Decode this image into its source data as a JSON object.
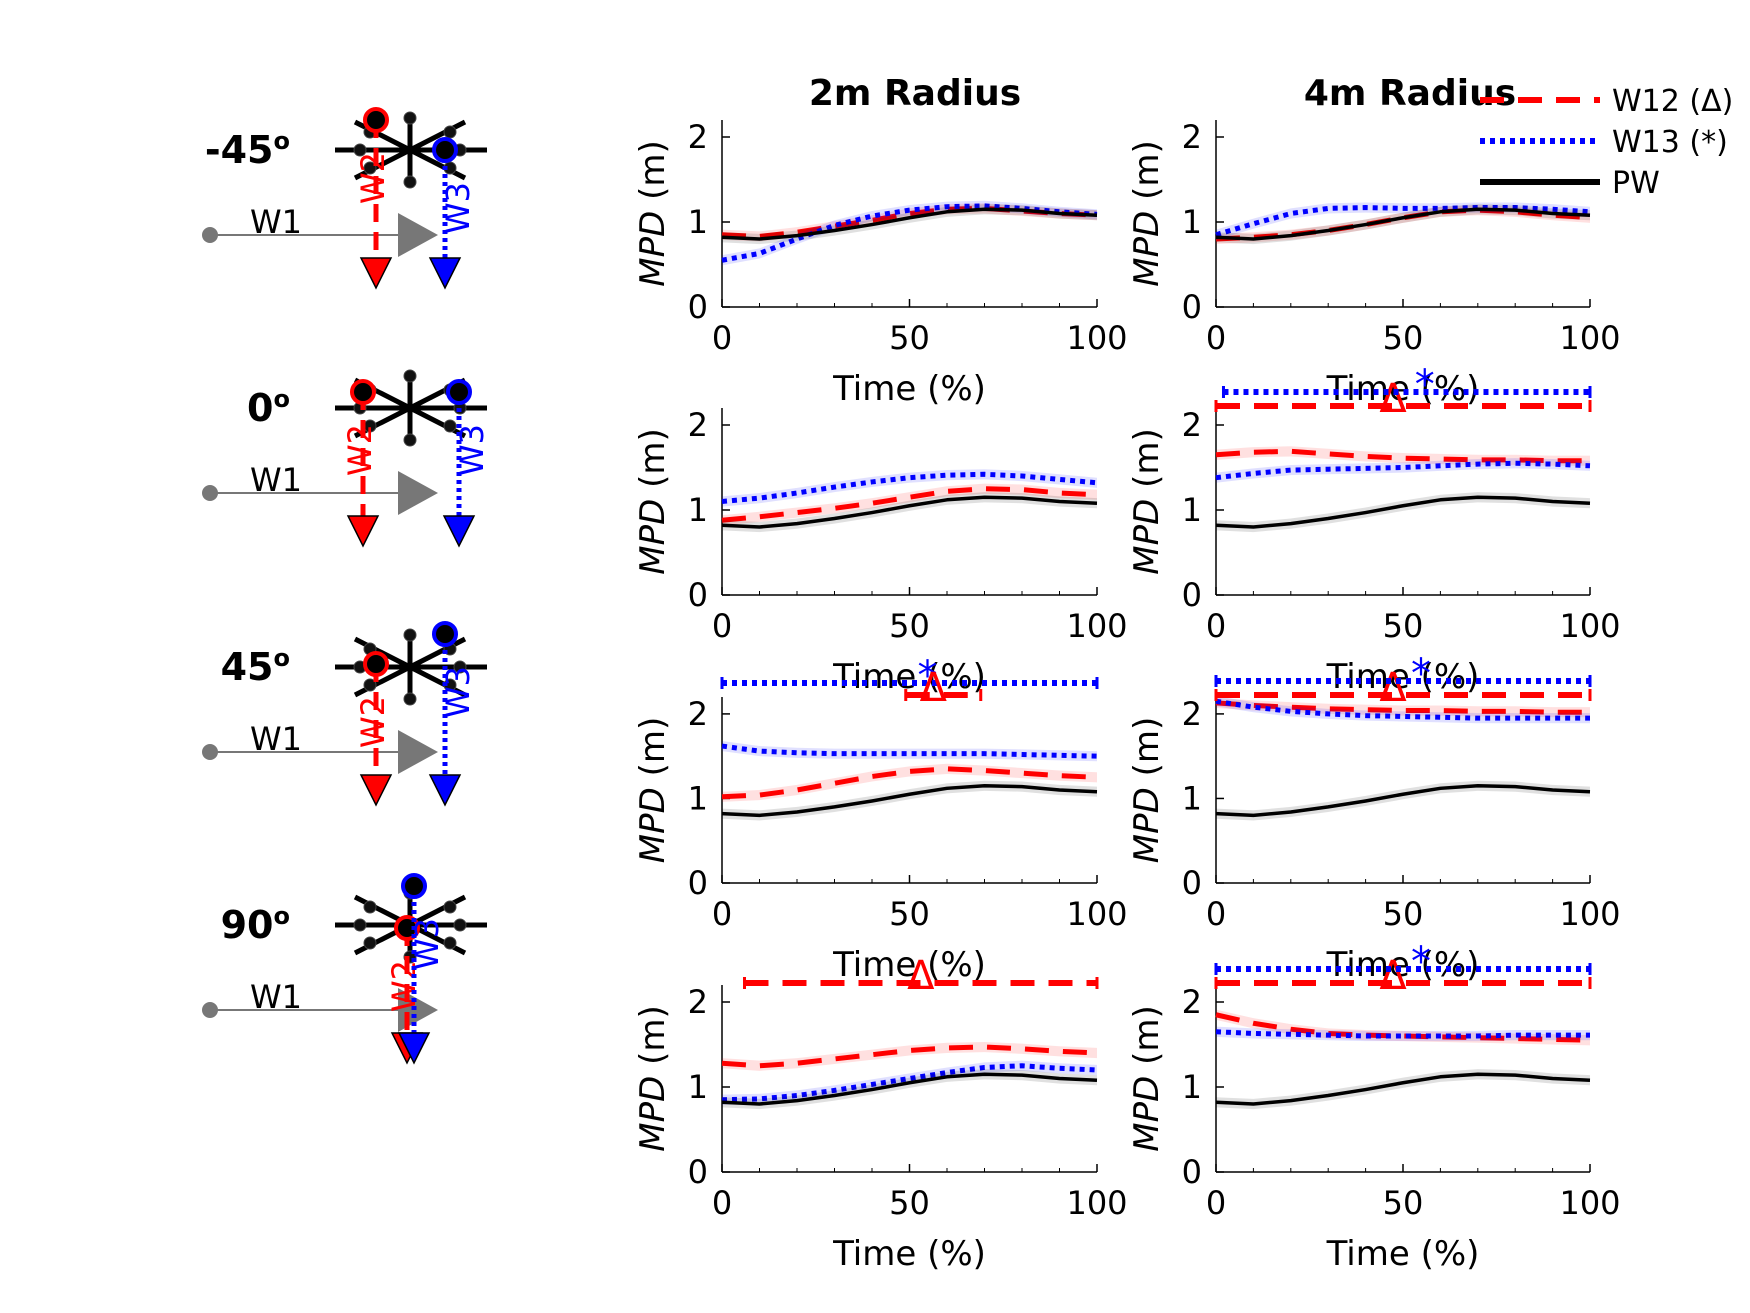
{
  "figure": {
    "column_titles": [
      "2m Radius",
      "4m Radius"
    ],
    "row_labels": [
      "-45",
      "0",
      "45",
      "90"
    ],
    "degree_symbol": "o",
    "walker_labels": {
      "w1": "W1",
      "w2": "W2",
      "w3": "W3"
    }
  },
  "legend": {
    "items": [
      {
        "label": "W12 (Δ)",
        "color": "#ff0000",
        "style": "dashed"
      },
      {
        "label": "W13 (*)",
        "color": "#0000ff",
        "style": "dotted"
      },
      {
        "label": "PW",
        "color": "#000000",
        "style": "solid"
      }
    ]
  },
  "colors": {
    "w12": "#ff0000",
    "w13": "#0000ff",
    "pw": "#000000",
    "w1": "#777777"
  },
  "chart_data": [
    {
      "type": "line",
      "panel": "-45 / 2m",
      "xlabel": "Time (%)",
      "ylabel": "MPD (m)",
      "xlim": [
        0,
        100
      ],
      "ylim": [
        0,
        2.2
      ],
      "xticks": [
        "0",
        "50",
        "100"
      ],
      "yticks": [
        "0",
        "1",
        "2"
      ],
      "x": [
        0,
        10,
        20,
        30,
        40,
        50,
        60,
        70,
        80,
        90,
        100
      ],
      "series": [
        {
          "name": "W12 (Δ)",
          "values": [
            0.85,
            0.83,
            0.88,
            0.95,
            1.02,
            1.1,
            1.15,
            1.16,
            1.13,
            1.1,
            1.08
          ]
        },
        {
          "name": "W13 (*)",
          "values": [
            0.55,
            0.63,
            0.8,
            0.96,
            1.07,
            1.14,
            1.18,
            1.19,
            1.16,
            1.12,
            1.09
          ]
        },
        {
          "name": "PW",
          "values": [
            0.82,
            0.8,
            0.84,
            0.9,
            0.97,
            1.05,
            1.12,
            1.15,
            1.14,
            1.1,
            1.08
          ]
        }
      ],
      "significance": []
    },
    {
      "type": "line",
      "panel": "-45 / 4m",
      "xlabel": "Time (%)",
      "ylabel": "MPD (m)",
      "xlim": [
        0,
        100
      ],
      "ylim": [
        0,
        2.2
      ],
      "xticks": [
        "0",
        "50",
        "100"
      ],
      "yticks": [
        "0",
        "1",
        "2"
      ],
      "x": [
        0,
        10,
        20,
        30,
        40,
        50,
        60,
        70,
        80,
        90,
        100
      ],
      "series": [
        {
          "name": "W12 (Δ)",
          "values": [
            0.8,
            0.82,
            0.85,
            0.9,
            0.97,
            1.05,
            1.12,
            1.14,
            1.12,
            1.08,
            1.05
          ]
        },
        {
          "name": "W13 (*)",
          "values": [
            0.85,
            0.98,
            1.1,
            1.16,
            1.17,
            1.16,
            1.16,
            1.17,
            1.17,
            1.15,
            1.12
          ]
        },
        {
          "name": "PW",
          "values": [
            0.82,
            0.8,
            0.84,
            0.9,
            0.97,
            1.05,
            1.12,
            1.15,
            1.14,
            1.1,
            1.08
          ]
        }
      ],
      "significance": []
    },
    {
      "type": "line",
      "panel": "0 / 2m",
      "xlabel": "Time (%)",
      "ylabel": "MPD (m)",
      "xlim": [
        0,
        100
      ],
      "ylim": [
        0,
        2.2
      ],
      "xticks": [
        "0",
        "50",
        "100"
      ],
      "yticks": [
        "0",
        "1",
        "2"
      ],
      "x": [
        0,
        10,
        20,
        30,
        40,
        50,
        60,
        70,
        80,
        90,
        100
      ],
      "series": [
        {
          "name": "W12 (Δ)",
          "values": [
            0.88,
            0.92,
            0.97,
            1.02,
            1.08,
            1.15,
            1.22,
            1.25,
            1.24,
            1.2,
            1.18
          ]
        },
        {
          "name": "W13 (*)",
          "values": [
            1.1,
            1.14,
            1.2,
            1.27,
            1.33,
            1.38,
            1.41,
            1.42,
            1.4,
            1.36,
            1.32
          ]
        },
        {
          "name": "PW",
          "values": [
            0.82,
            0.8,
            0.84,
            0.9,
            0.97,
            1.05,
            1.12,
            1.15,
            1.14,
            1.1,
            1.08
          ]
        }
      ],
      "significance": []
    },
    {
      "type": "line",
      "panel": "0 / 4m",
      "xlabel": "Time (%)",
      "ylabel": "MPD (m)",
      "xlim": [
        0,
        100
      ],
      "ylim": [
        0,
        2.2
      ],
      "xticks": [
        "0",
        "50",
        "100"
      ],
      "yticks": [
        "0",
        "1",
        "2"
      ],
      "x": [
        0,
        10,
        20,
        30,
        40,
        50,
        60,
        70,
        80,
        90,
        100
      ],
      "series": [
        {
          "name": "W12 (Δ)",
          "values": [
            1.65,
            1.68,
            1.69,
            1.66,
            1.63,
            1.61,
            1.6,
            1.59,
            1.59,
            1.58,
            1.58
          ]
        },
        {
          "name": "W13 (*)",
          "values": [
            1.38,
            1.43,
            1.47,
            1.48,
            1.49,
            1.5,
            1.52,
            1.54,
            1.55,
            1.54,
            1.52
          ]
        },
        {
          "name": "PW",
          "values": [
            0.82,
            0.8,
            0.84,
            0.9,
            0.97,
            1.05,
            1.12,
            1.15,
            1.14,
            1.1,
            1.08
          ]
        }
      ],
      "significance": [
        {
          "series": "W12 (Δ)",
          "symbol": "Δ",
          "start": 0,
          "end": 100
        },
        {
          "series": "W13 (*)",
          "symbol": "*",
          "start": 2,
          "end": 100
        }
      ]
    },
    {
      "type": "line",
      "panel": "45 / 2m",
      "xlabel": "Time (%)",
      "ylabel": "MPD (m)",
      "xlim": [
        0,
        100
      ],
      "ylim": [
        0,
        2.2
      ],
      "xticks": [
        "0",
        "50",
        "100"
      ],
      "yticks": [
        "0",
        "1",
        "2"
      ],
      "x": [
        0,
        10,
        20,
        30,
        40,
        50,
        60,
        70,
        80,
        90,
        100
      ],
      "series": [
        {
          "name": "W12 (Δ)",
          "values": [
            1.02,
            1.04,
            1.1,
            1.18,
            1.26,
            1.32,
            1.35,
            1.33,
            1.3,
            1.27,
            1.25
          ]
        },
        {
          "name": "W13 (*)",
          "values": [
            1.62,
            1.56,
            1.54,
            1.53,
            1.53,
            1.53,
            1.53,
            1.53,
            1.52,
            1.51,
            1.5
          ]
        },
        {
          "name": "PW",
          "values": [
            0.82,
            0.8,
            0.84,
            0.9,
            0.97,
            1.05,
            1.12,
            1.15,
            1.14,
            1.1,
            1.08
          ]
        }
      ],
      "significance": [
        {
          "series": "W13 (*)",
          "symbol": "*",
          "start": 0,
          "end": 100
        },
        {
          "series": "W12 (Δ)",
          "symbol": "Δ",
          "start": 49,
          "end": 69
        }
      ]
    },
    {
      "type": "line",
      "panel": "45 / 4m",
      "xlabel": "Time (%)",
      "ylabel": "MPD (m)",
      "xlim": [
        0,
        100
      ],
      "ylim": [
        0,
        2.2
      ],
      "xticks": [
        "0",
        "50",
        "100"
      ],
      "yticks": [
        "0",
        "1",
        "2"
      ],
      "x": [
        0,
        10,
        20,
        30,
        40,
        50,
        60,
        70,
        80,
        90,
        100
      ],
      "series": [
        {
          "name": "W12 (Δ)",
          "values": [
            2.13,
            2.1,
            2.08,
            2.06,
            2.05,
            2.04,
            2.04,
            2.03,
            2.03,
            2.02,
            2.02
          ]
        },
        {
          "name": "W13 (*)",
          "values": [
            2.15,
            2.08,
            2.03,
            2.0,
            1.98,
            1.97,
            1.96,
            1.95,
            1.95,
            1.95,
            1.95
          ]
        },
        {
          "name": "PW",
          "values": [
            0.82,
            0.8,
            0.84,
            0.9,
            0.97,
            1.05,
            1.12,
            1.15,
            1.14,
            1.1,
            1.08
          ]
        }
      ],
      "significance": [
        {
          "series": "W12 (Δ)",
          "symbol": "Δ",
          "start": 0,
          "end": 100
        },
        {
          "series": "W13 (*)",
          "symbol": "*",
          "start": 0,
          "end": 100
        }
      ]
    },
    {
      "type": "line",
      "panel": "90 / 2m",
      "xlabel": "Time (%)",
      "ylabel": "MPD (m)",
      "xlim": [
        0,
        100
      ],
      "ylim": [
        0,
        2.2
      ],
      "xticks": [
        "0",
        "50",
        "100"
      ],
      "yticks": [
        "0",
        "1",
        "2"
      ],
      "x": [
        0,
        10,
        20,
        30,
        40,
        50,
        60,
        70,
        80,
        90,
        100
      ],
      "series": [
        {
          "name": "W12 (Δ)",
          "values": [
            1.28,
            1.25,
            1.28,
            1.33,
            1.38,
            1.43,
            1.46,
            1.47,
            1.45,
            1.42,
            1.4
          ]
        },
        {
          "name": "W13 (*)",
          "values": [
            0.85,
            0.86,
            0.9,
            0.96,
            1.03,
            1.1,
            1.17,
            1.23,
            1.25,
            1.22,
            1.2
          ]
        },
        {
          "name": "PW",
          "values": [
            0.82,
            0.8,
            0.84,
            0.9,
            0.97,
            1.05,
            1.12,
            1.15,
            1.14,
            1.1,
            1.08
          ]
        }
      ],
      "significance": [
        {
          "series": "W12 (Δ)",
          "symbol": "Δ",
          "start": 6,
          "end": 100
        }
      ]
    },
    {
      "type": "line",
      "panel": "90 / 4m",
      "xlabel": "Time (%)",
      "ylabel": "MPD (m)",
      "xlim": [
        0,
        100
      ],
      "ylim": [
        0,
        2.2
      ],
      "xticks": [
        "0",
        "50",
        "100"
      ],
      "yticks": [
        "0",
        "1",
        "2"
      ],
      "x": [
        0,
        10,
        20,
        30,
        40,
        50,
        60,
        70,
        80,
        90,
        100
      ],
      "series": [
        {
          "name": "W12 (Δ)",
          "values": [
            1.85,
            1.75,
            1.68,
            1.63,
            1.61,
            1.6,
            1.59,
            1.58,
            1.57,
            1.56,
            1.55
          ]
        },
        {
          "name": "W13 (*)",
          "values": [
            1.65,
            1.63,
            1.62,
            1.61,
            1.6,
            1.6,
            1.6,
            1.6,
            1.61,
            1.61,
            1.61
          ]
        },
        {
          "name": "PW",
          "values": [
            0.82,
            0.8,
            0.84,
            0.9,
            0.97,
            1.05,
            1.12,
            1.15,
            1.14,
            1.1,
            1.08
          ]
        }
      ],
      "significance": [
        {
          "series": "W12 (Δ)",
          "symbol": "Δ",
          "start": 0,
          "end": 100
        },
        {
          "series": "W13 (*)",
          "symbol": "*",
          "start": 0,
          "end": 100
        }
      ]
    }
  ]
}
